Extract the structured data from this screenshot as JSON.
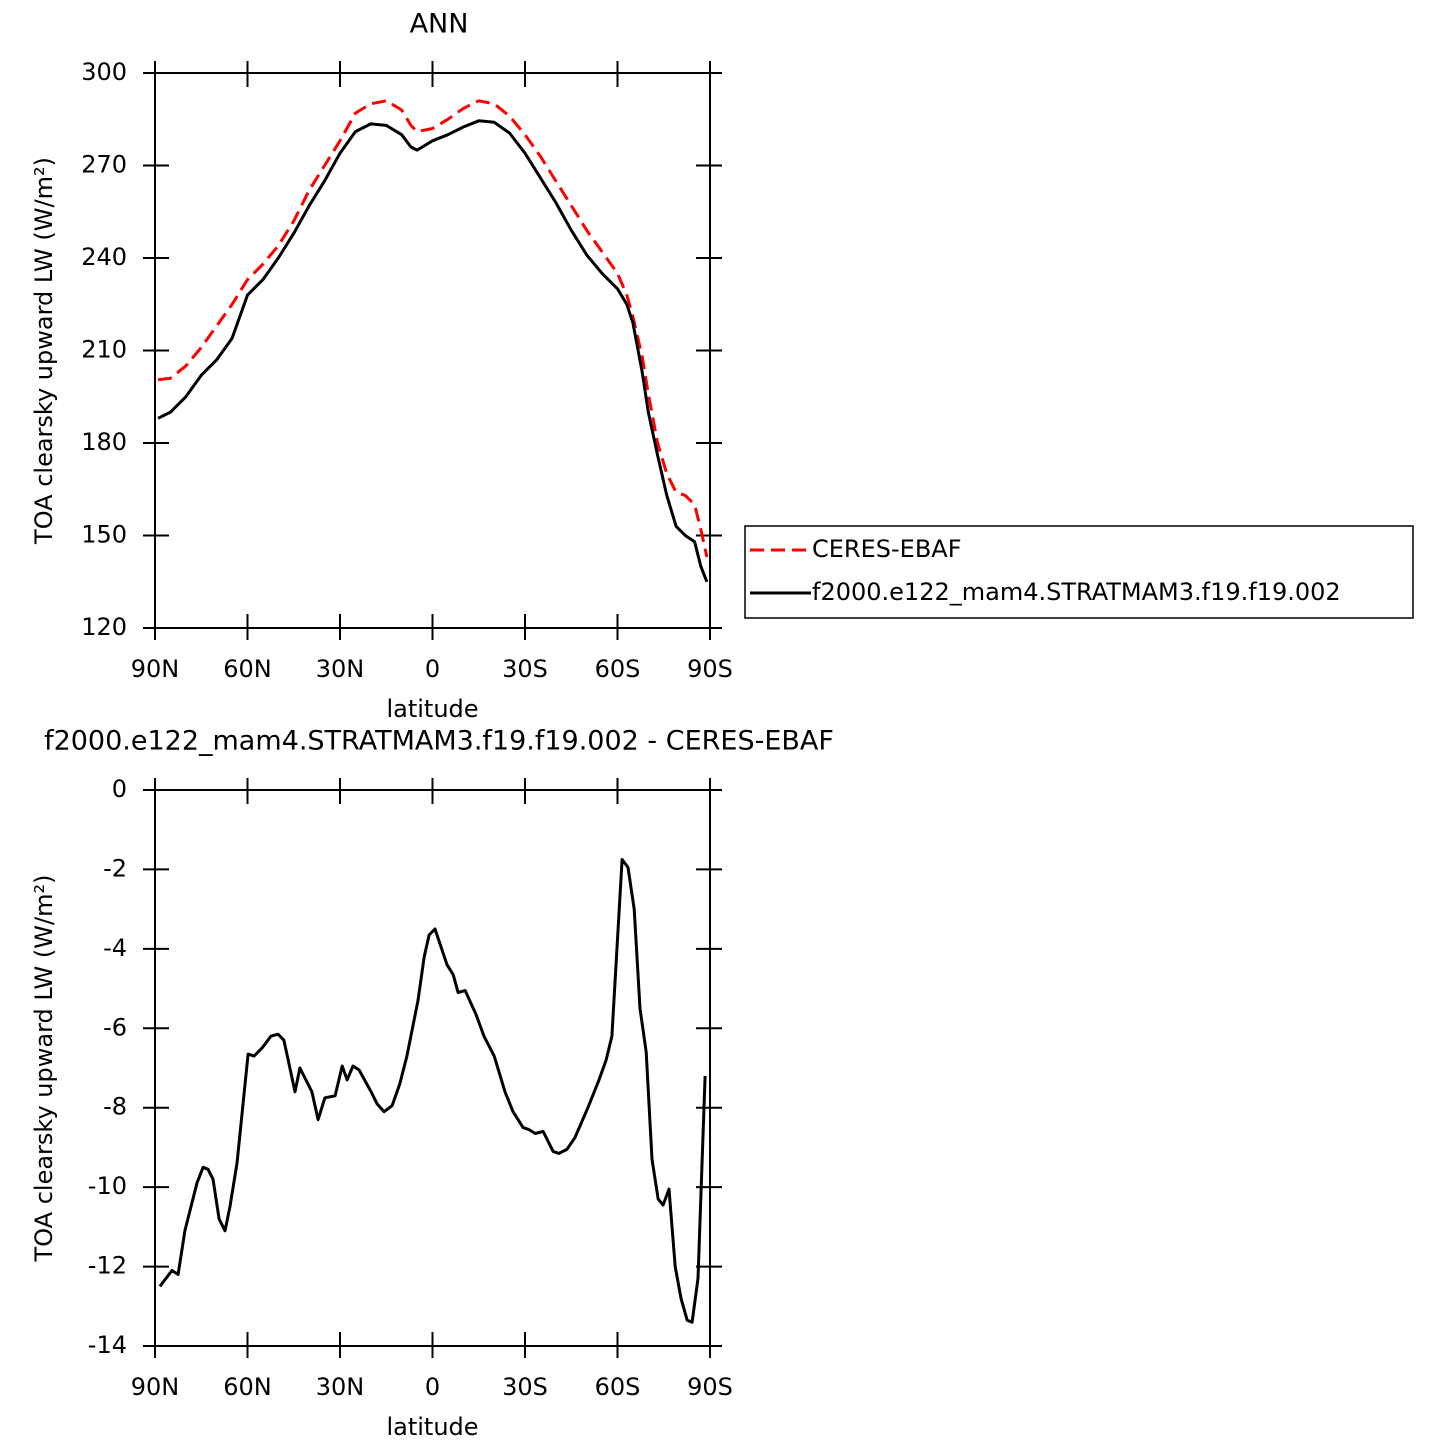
{
  "chart_data": [
    {
      "type": "line",
      "title": "ANN",
      "xlabel": "latitude",
      "ylabel": "TOA clearsky upward LW (W/m²)",
      "xlim": [
        90,
        -90
      ],
      "xticks": [
        {
          "value": 90,
          "label": "90N"
        },
        {
          "value": 60,
          "label": "60N"
        },
        {
          "value": 30,
          "label": "30N"
        },
        0,
        {
          "value": -30,
          "label": "30S"
        },
        {
          "value": -60,
          "label": "60S"
        },
        {
          "value": -90,
          "label": "90S"
        }
      ],
      "ylim": [
        120,
        300
      ],
      "yticks": [
        120,
        150,
        180,
        210,
        240,
        270,
        300
      ],
      "legend": "right",
      "x": [
        89,
        85,
        80,
        75,
        70,
        65,
        60,
        55,
        50,
        45,
        40,
        35,
        30,
        25,
        20,
        15,
        10,
        7,
        5,
        0,
        -5,
        -10,
        -15,
        -20,
        -25,
        -30,
        -35,
        -40,
        -45,
        -50,
        -55,
        -60,
        -63,
        -65,
        -68,
        -70,
        -73,
        -76,
        -79,
        -82,
        -85,
        -87,
        -89
      ],
      "series": [
        {
          "name": "CERES-EBAF",
          "color": "#ff0000",
          "dashed": true,
          "values": [
            200.5,
            201,
            205,
            211,
            218,
            225,
            233,
            238,
            244,
            252,
            262,
            270,
            278,
            287,
            290,
            291,
            288,
            283,
            281,
            282,
            285,
            288.5,
            291,
            290,
            286,
            280,
            273,
            265,
            257,
            249,
            242,
            235,
            228,
            221,
            208,
            196,
            180,
            170,
            164,
            163,
            160,
            152,
            143
          ]
        },
        {
          "name": "f2000.e122_mam4.STRATMAM3.f19.f19.002",
          "color": "#000000",
          "dashed": false,
          "values": [
            188,
            190,
            195,
            202,
            207,
            214,
            228,
            233,
            240,
            248,
            257,
            265,
            274,
            281,
            283.5,
            283,
            280,
            276,
            275,
            278,
            280,
            282.5,
            284.5,
            284,
            280.5,
            274,
            266,
            258,
            249,
            241,
            235,
            230,
            225,
            219,
            203,
            190,
            176,
            163,
            153,
            150,
            148,
            140,
            135
          ]
        }
      ]
    },
    {
      "type": "line",
      "title": "f2000.e122_mam4.STRATMAM3.f19.f19.002 - CERES-EBAF",
      "xlabel": "latitude",
      "ylabel": "TOA clearsky upward LW (W/m²)",
      "xlim": [
        90,
        -90
      ],
      "xticks": [
        {
          "value": 90,
          "label": "90N"
        },
        {
          "value": 60,
          "label": "60N"
        },
        {
          "value": 30,
          "label": "30N"
        },
        0,
        {
          "value": -30,
          "label": "30S"
        },
        {
          "value": -60,
          "label": "60S"
        },
        {
          "value": -90,
          "label": "90S"
        }
      ],
      "ylim": [
        -14,
        0
      ],
      "yticks": [
        -14,
        -12,
        -10,
        -8,
        -6,
        -4,
        -2,
        0
      ],
      "x": [
        88.4,
        84.5,
        82.5,
        80.3,
        76.4,
        74.4,
        72.8,
        71.2,
        69.2,
        67.3,
        65.7,
        63.4,
        59.8,
        57.9,
        55.3,
        52.4,
        50.1,
        48.2,
        44.6,
        43,
        39.1,
        37.1,
        34.9,
        31.6,
        29.3,
        27.7,
        25.8,
        23.8,
        19.9,
        18,
        15.7,
        13.1,
        10.6,
        8.3,
        4.7,
        2.7,
        1.1,
        -0.8,
        -4.7,
        -6.7,
        -8.3,
        -10.6,
        -14.1,
        -16.7,
        -20,
        -23.5,
        -26.1,
        -29.4,
        -31.3,
        -33.3,
        -35.9,
        -39.1,
        -41,
        -43.6,
        -46.2,
        -50.4,
        -54,
        -56.3,
        -58.2,
        -61.5,
        -63.4,
        -65.4,
        -67.3,
        -69.3,
        -71.2,
        -73.2,
        -74.8,
        -76.7,
        -78.7,
        -80.6,
        -82.6,
        -84.2,
        -86.1,
        -88.4
      ],
      "series": [
        {
          "color": "#000000",
          "dashed": false,
          "values": [
            -12.5,
            -12.1,
            -12.2,
            -11.1,
            -9.9,
            -9.5,
            -9.55,
            -9.8,
            -10.8,
            -11.1,
            -10.5,
            -9.4,
            -6.65,
            -6.7,
            -6.5,
            -6.2,
            -6.15,
            -6.3,
            -7.6,
            -7.0,
            -7.6,
            -8.3,
            -7.75,
            -7.7,
            -6.95,
            -7.3,
            -6.95,
            -7.05,
            -7.6,
            -7.9,
            -8.1,
            -7.95,
            -7.4,
            -6.7,
            -5.3,
            -4.2,
            -3.65,
            -3.5,
            -4.4,
            -4.65,
            -5.1,
            -5.05,
            -5.65,
            -6.2,
            -6.7,
            -7.6,
            -8.1,
            -8.5,
            -8.55,
            -8.65,
            -8.6,
            -9.1,
            -9.15,
            -9.05,
            -8.75,
            -8.0,
            -7.3,
            -6.8,
            -6.2,
            -1.75,
            -1.95,
            -3.0,
            -5.5,
            -6.6,
            -9.3,
            -10.3,
            -10.45,
            -10.05,
            -12.0,
            -12.8,
            -13.35,
            -13.4,
            -12.3,
            -7.2
          ]
        }
      ]
    }
  ]
}
